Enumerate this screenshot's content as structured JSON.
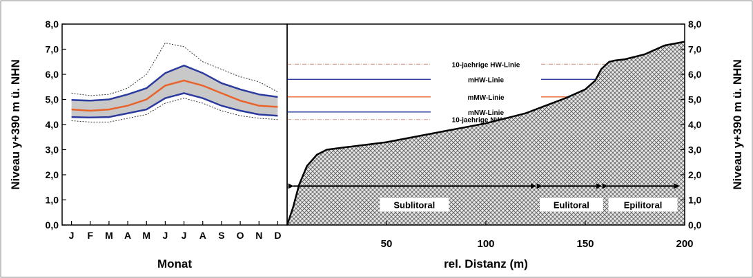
{
  "chart_data": [
    {
      "type": "line",
      "xlabel": "Monat",
      "ylabel": "Niveau y+390 m ü. NHN",
      "ylim": [
        0,
        8
      ],
      "yticks": [
        "0,0",
        "1,0",
        "2,0",
        "3,0",
        "4,0",
        "5,0",
        "6,0",
        "7,0",
        "8,0"
      ],
      "categories": [
        "J",
        "F",
        "M",
        "A",
        "M",
        "J",
        "J",
        "A",
        "S",
        "O",
        "N",
        "D"
      ],
      "grid": false,
      "series_colors": {
        "band_fill": "#c8c8c8",
        "percentile": "#2b3a9e",
        "median": "#e8622a",
        "extremes": "#333333"
      },
      "series": [
        {
          "values": [
            4.98,
            4.95,
            5.0,
            5.2,
            5.45,
            6.05,
            6.35,
            6.05,
            5.65,
            5.4,
            5.2,
            5.1
          ]
        },
        {
          "values": [
            4.6,
            4.55,
            4.6,
            4.75,
            5.0,
            5.55,
            5.75,
            5.55,
            5.25,
            4.95,
            4.75,
            4.7
          ]
        },
        {
          "values": [
            4.3,
            4.28,
            4.3,
            4.45,
            4.6,
            5.05,
            5.25,
            5.05,
            4.75,
            4.55,
            4.4,
            4.35
          ]
        },
        {
          "values": [
            5.25,
            5.15,
            5.2,
            5.45,
            6.0,
            7.25,
            7.1,
            6.5,
            6.2,
            5.9,
            5.7,
            5.3
          ]
        },
        {
          "values": [
            4.15,
            4.1,
            4.1,
            4.25,
            4.4,
            4.85,
            5.05,
            4.85,
            4.55,
            4.35,
            4.25,
            4.2
          ]
        }
      ]
    },
    {
      "type": "area",
      "xlabel": "rel. Distanz (m)",
      "ylabel": "Niveau y+390 m ü. NHN",
      "xlim": [
        0,
        200
      ],
      "ylim": [
        0,
        8
      ],
      "xticks": [
        50,
        100,
        150,
        200
      ],
      "yticks": [
        "0,0",
        "1,0",
        "2,0",
        "3,0",
        "4,0",
        "5,0",
        "6,0",
        "7,0",
        "8,0"
      ],
      "profile_x": [
        0,
        3,
        6,
        10,
        15,
        20,
        30,
        40,
        50,
        60,
        70,
        80,
        90,
        100,
        110,
        120,
        130,
        140,
        150,
        155,
        158,
        162,
        165,
        170,
        180,
        190,
        200
      ],
      "profile_y": [
        0,
        0.7,
        1.6,
        2.35,
        2.8,
        3.0,
        3.1,
        3.2,
        3.3,
        3.45,
        3.6,
        3.75,
        3.9,
        4.05,
        4.25,
        4.45,
        4.75,
        5.05,
        5.4,
        5.75,
        6.2,
        6.5,
        6.55,
        6.6,
        6.8,
        7.15,
        7.3
      ],
      "reference_lines": [
        {
          "label": "10-jaehrige HW-Linie",
          "y": 6.4,
          "color": "#d9a39a",
          "style": "dashdot"
        },
        {
          "label": "mHW-Linie",
          "y": 5.8,
          "color": "#2b3a9e",
          "style": "solid"
        },
        {
          "label": "mMW-Linie",
          "y": 5.1,
          "color": "#e8622a",
          "style": "solid"
        },
        {
          "label": "mNW-Linie",
          "y": 4.5,
          "color": "#2b3a9e",
          "style": "solid"
        },
        {
          "label": "10-jaehrige NW-Linie",
          "y": 4.2,
          "color": "#d9a39a",
          "style": "dashdot"
        }
      ],
      "zones": [
        {
          "label": "Sublitoral",
          "x_start": 3,
          "x_end": 125
        },
        {
          "label": "Eulitoral",
          "x_start": 128,
          "x_end": 158
        },
        {
          "label": "Epilitoral",
          "x_start": 161,
          "x_end": 197
        }
      ],
      "zone_arrow_y": 1.55
    }
  ]
}
